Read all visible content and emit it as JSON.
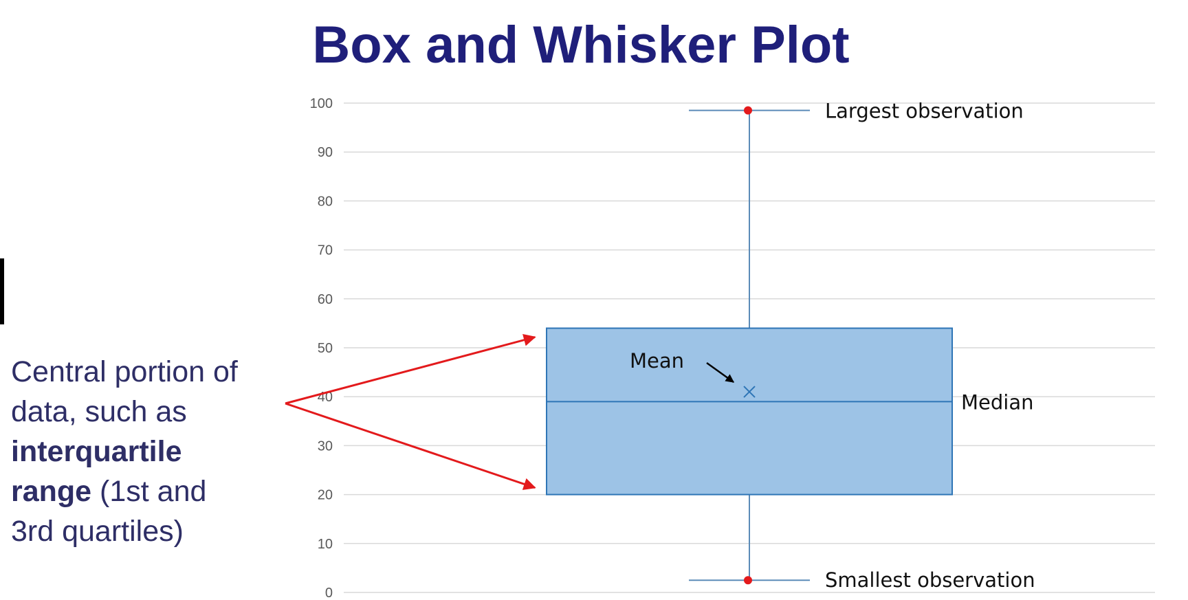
{
  "title": "Box and Whisker Plot",
  "side_note": {
    "line1": "Central portion of",
    "line2": "data, such as",
    "bold1": "interquartile",
    "bold2": "range",
    "rest2": " (1st and",
    "line5": "3rd quartiles)"
  },
  "colors": {
    "title": "#1f1f7a",
    "box_fill": "#9dc3e6",
    "box_stroke": "#2e75b6",
    "whisker": "#5b8bb8",
    "extreme_point": "#e31a1c",
    "arrow": "#e31a1c",
    "grid": "#d9d9d9"
  },
  "chart_data": {
    "type": "box",
    "ylim": [
      0,
      100
    ],
    "yticks": [
      "0",
      "10",
      "20",
      "30",
      "40",
      "50",
      "60",
      "70",
      "80",
      "90",
      "100"
    ],
    "grid": true,
    "box": {
      "min": 2.5,
      "q1": 20,
      "median": 39,
      "mean": 41,
      "q3": 54,
      "max": 98.5
    },
    "annotations": {
      "max_label": "Largest observation",
      "min_label": "Smallest observation",
      "median_label": "Median",
      "mean_label": "Mean"
    }
  }
}
